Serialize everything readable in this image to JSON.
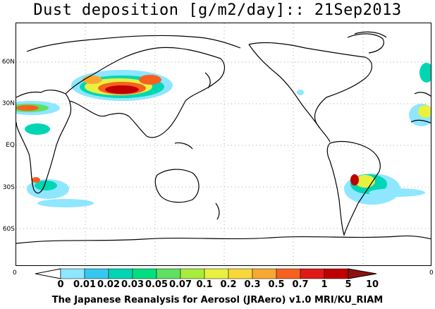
{
  "title": "Dust deposition [g/m2/day]:: 21Sep2013",
  "credit": "The Japanese Reanalysis for Aerosol (JRAero) v1.0 MRI/KU_RIAM",
  "lat_labels": [
    "60N",
    "30N",
    "EQ",
    "30S",
    "60S"
  ],
  "axis_zero_left": "0",
  "axis_zero_right": "0",
  "colorbar": {
    "levels": [
      "0",
      "0.01",
      "0.02",
      "0.03",
      "0.05",
      "0.07",
      "0.1",
      "0.2",
      "0.3",
      "0.5",
      "0.7",
      "1",
      "5",
      "10"
    ],
    "colors": [
      "#ffffff",
      "#8ee6ff",
      "#34c8f0",
      "#00d6b4",
      "#00e080",
      "#5ee060",
      "#a8ec3c",
      "#e8f040",
      "#f8d838",
      "#f8a830",
      "#f86020",
      "#e01818",
      "#c00000",
      "#901010"
    ]
  }
}
